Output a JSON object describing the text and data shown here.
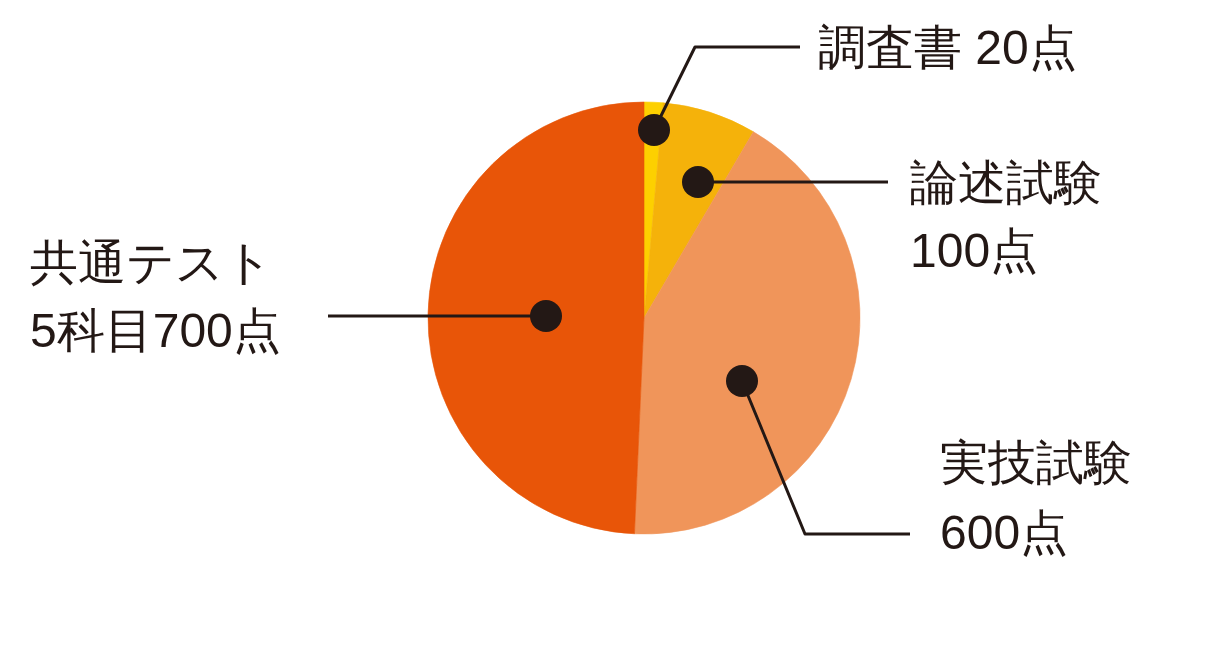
{
  "chart_data": {
    "type": "pie",
    "categories": [
      "調査書",
      "論述試験",
      "実技試験",
      "共通テスト"
    ],
    "values": [
      20,
      100,
      600,
      700
    ],
    "colors": [
      "#fdd000",
      "#f5b20a",
      "#f0955a",
      "#e85508"
    ],
    "value_labels": [
      "20点",
      "100点",
      "600点",
      "5科目700点"
    ]
  }
}
